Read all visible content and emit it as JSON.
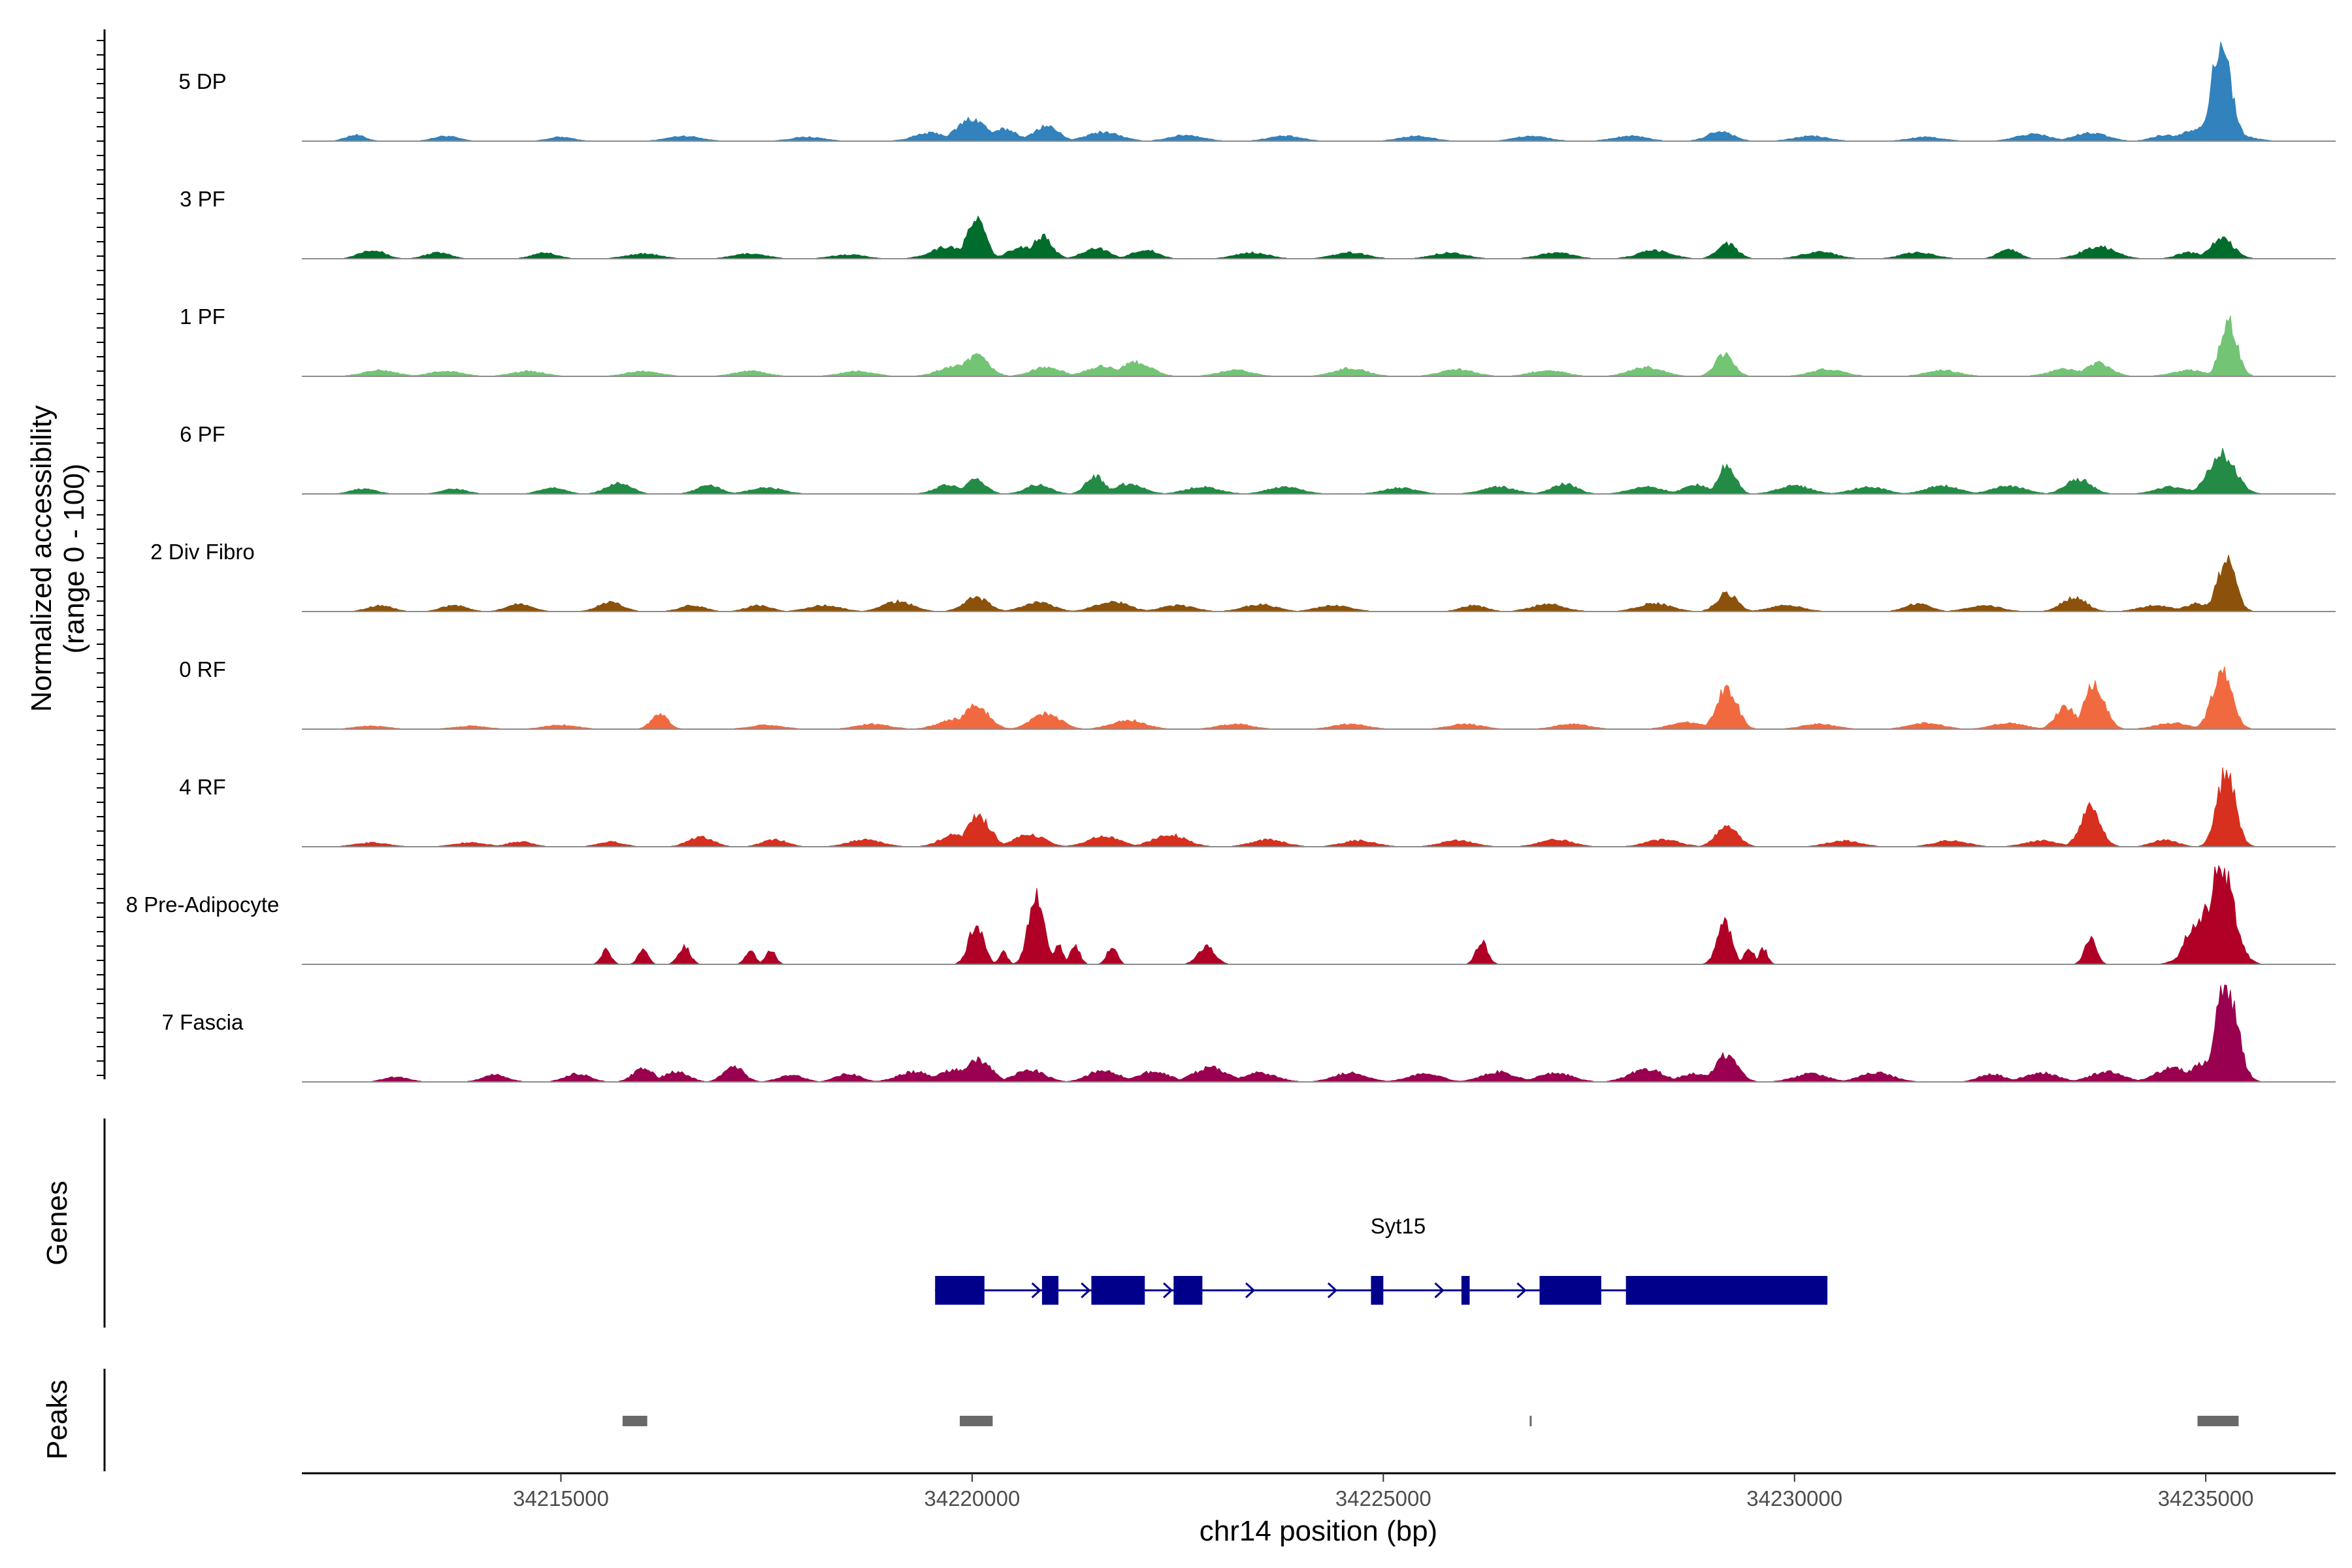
{
  "chart_data": {
    "type": "area",
    "chromosome": "chr14",
    "xlabel": "chr14 position (bp)",
    "xlim": [
      34211850,
      34236580
    ],
    "xticks": [
      34215000,
      34220000,
      34225000,
      34230000,
      34235000
    ],
    "xtick_labels": [
      "34215000",
      "34220000",
      "34225000",
      "34230000",
      "34235000"
    ],
    "coverage_panel": {
      "ylabel_line1": "Normalized accessibility",
      "ylabel_line2": "(range 0 - 100)",
      "ylim": [
        0,
        100
      ]
    },
    "tracks": [
      {
        "name": "5 DP",
        "color": "#3182bd",
        "peaks": [
          [
            34212500,
            6,
            120
          ],
          [
            34213600,
            5,
            150
          ],
          [
            34215000,
            4,
            150
          ],
          [
            34216500,
            5,
            200
          ],
          [
            34218000,
            4,
            200
          ],
          [
            34219500,
            8,
            200
          ],
          [
            34220000,
            22,
            180
          ],
          [
            34220400,
            12,
            150
          ],
          [
            34220900,
            15,
            150
          ],
          [
            34221600,
            9,
            200
          ],
          [
            34222600,
            6,
            200
          ],
          [
            34223800,
            5,
            200
          ],
          [
            34225400,
            5,
            200
          ],
          [
            34226800,
            5,
            200
          ],
          [
            34228000,
            5,
            200
          ],
          [
            34229100,
            10,
            150
          ],
          [
            34230200,
            5,
            200
          ],
          [
            34231600,
            4,
            200
          ],
          [
            34232900,
            7,
            200
          ],
          [
            34233600,
            8,
            200
          ],
          [
            34234500,
            6,
            150
          ],
          [
            34235190,
            95,
            120
          ],
          [
            34235050,
            15,
            300
          ]
        ]
      },
      {
        "name": "3 PF",
        "color": "#006d2c",
        "peaks": [
          [
            34212700,
            9,
            150
          ],
          [
            34213500,
            6,
            150
          ],
          [
            34214800,
            6,
            150
          ],
          [
            34216000,
            5,
            200
          ],
          [
            34217300,
            5,
            200
          ],
          [
            34218500,
            4,
            200
          ],
          [
            34219700,
            12,
            200
          ],
          [
            34220050,
            40,
            110
          ],
          [
            34220600,
            12,
            150
          ],
          [
            34220850,
            22,
            120
          ],
          [
            34221500,
            11,
            150
          ],
          [
            34222100,
            9,
            150
          ],
          [
            34223400,
            6,
            200
          ],
          [
            34224600,
            6,
            200
          ],
          [
            34225800,
            6,
            200
          ],
          [
            34227100,
            6,
            200
          ],
          [
            34228300,
            8,
            200
          ],
          [
            34229180,
            15,
            120
          ],
          [
            34230300,
            7,
            200
          ],
          [
            34231500,
            6,
            200
          ],
          [
            34232600,
            10,
            120
          ],
          [
            34233700,
            12,
            200
          ],
          [
            34234800,
            6,
            150
          ],
          [
            34235200,
            20,
            140
          ]
        ]
      },
      {
        "name": "1 PF",
        "color": "#74c476",
        "peaks": [
          [
            34212800,
            6,
            200
          ],
          [
            34213600,
            5,
            200
          ],
          [
            34214600,
            5,
            200
          ],
          [
            34216000,
            5,
            200
          ],
          [
            34217300,
            5,
            200
          ],
          [
            34218600,
            5,
            200
          ],
          [
            34219800,
            10,
            200
          ],
          [
            34220050,
            20,
            150
          ],
          [
            34220900,
            9,
            180
          ],
          [
            34221600,
            10,
            200
          ],
          [
            34222000,
            14,
            180
          ],
          [
            34223200,
            6,
            200
          ],
          [
            34224600,
            8,
            200
          ],
          [
            34225900,
            7,
            200
          ],
          [
            34227000,
            6,
            200
          ],
          [
            34228200,
            9,
            200
          ],
          [
            34229150,
            22,
            110
          ],
          [
            34230400,
            7,
            200
          ],
          [
            34231800,
            6,
            200
          ],
          [
            34233300,
            7,
            200
          ],
          [
            34233700,
            13,
            150
          ],
          [
            34234800,
            6,
            200
          ],
          [
            34235280,
            55,
            100
          ]
        ]
      },
      {
        "name": "6 PF",
        "color": "#238b45",
        "peaks": [
          [
            34212600,
            5,
            150
          ],
          [
            34213700,
            5,
            150
          ],
          [
            34214900,
            6,
            150
          ],
          [
            34215700,
            11,
            150
          ],
          [
            34216800,
            8,
            150
          ],
          [
            34217500,
            6,
            200
          ],
          [
            34219700,
            9,
            150
          ],
          [
            34220050,
            14,
            120
          ],
          [
            34220800,
            9,
            150
          ],
          [
            34221500,
            18,
            110
          ],
          [
            34221900,
            10,
            180
          ],
          [
            34222800,
            7,
            200
          ],
          [
            34223800,
            7,
            200
          ],
          [
            34225200,
            6,
            200
          ],
          [
            34226400,
            7,
            200
          ],
          [
            34227200,
            10,
            150
          ],
          [
            34228200,
            7,
            200
          ],
          [
            34228800,
            9,
            150
          ],
          [
            34229180,
            30,
            100
          ],
          [
            34230000,
            8,
            200
          ],
          [
            34230900,
            7,
            200
          ],
          [
            34231800,
            8,
            200
          ],
          [
            34232600,
            8,
            200
          ],
          [
            34233450,
            15,
            150
          ],
          [
            34234600,
            7,
            200
          ],
          [
            34235200,
            40,
            160
          ]
        ]
      },
      {
        "name": "2 Div Fibro",
        "color": "#8c510a",
        "peaks": [
          [
            34212800,
            6,
            150
          ],
          [
            34213700,
            6,
            150
          ],
          [
            34214500,
            8,
            150
          ],
          [
            34215600,
            9,
            150
          ],
          [
            34216600,
            6,
            150
          ],
          [
            34217400,
            6,
            150
          ],
          [
            34218200,
            6,
            200
          ],
          [
            34219100,
            10,
            180
          ],
          [
            34220050,
            14,
            150
          ],
          [
            34220800,
            9,
            180
          ],
          [
            34221700,
            10,
            200
          ],
          [
            34222500,
            6,
            200
          ],
          [
            34223500,
            7,
            200
          ],
          [
            34224400,
            6,
            200
          ],
          [
            34226100,
            6,
            150
          ],
          [
            34227000,
            7,
            200
          ],
          [
            34228300,
            8,
            200
          ],
          [
            34229180,
            18,
            120
          ],
          [
            34229900,
            6,
            200
          ],
          [
            34231500,
            8,
            150
          ],
          [
            34232300,
            6,
            200
          ],
          [
            34233400,
            14,
            150
          ],
          [
            34234400,
            6,
            200
          ],
          [
            34234900,
            8,
            150
          ],
          [
            34235250,
            50,
            110
          ]
        ]
      },
      {
        "name": "0 RF",
        "color": "#f16a3f",
        "peaks": [
          [
            34212700,
            3,
            200
          ],
          [
            34213900,
            3,
            200
          ],
          [
            34215000,
            4,
            200
          ],
          [
            34216200,
            15,
            100
          ],
          [
            34217500,
            4,
            200
          ],
          [
            34218800,
            5,
            200
          ],
          [
            34219800,
            10,
            200
          ],
          [
            34220050,
            24,
            150
          ],
          [
            34220900,
            16,
            170
          ],
          [
            34221900,
            9,
            200
          ],
          [
            34223200,
            5,
            200
          ],
          [
            34224600,
            5,
            200
          ],
          [
            34226000,
            5,
            200
          ],
          [
            34227300,
            5,
            200
          ],
          [
            34228700,
            7,
            200
          ],
          [
            34229180,
            42,
            120
          ],
          [
            34230300,
            5,
            200
          ],
          [
            34231600,
            6,
            200
          ],
          [
            34232600,
            6,
            200
          ],
          [
            34233300,
            22,
            120
          ],
          [
            34233650,
            45,
            120
          ],
          [
            34234600,
            6,
            200
          ],
          [
            34235200,
            56,
            120
          ]
        ]
      },
      {
        "name": "4 RF",
        "color": "#d7301f",
        "peaks": [
          [
            34212700,
            4,
            200
          ],
          [
            34213900,
            4,
            200
          ],
          [
            34214500,
            5,
            150
          ],
          [
            34215600,
            5,
            150
          ],
          [
            34216700,
            10,
            150
          ],
          [
            34217600,
            7,
            150
          ],
          [
            34218700,
            7,
            200
          ],
          [
            34219800,
            12,
            180
          ],
          [
            34220080,
            30,
            140
          ],
          [
            34220700,
            12,
            180
          ],
          [
            34221600,
            10,
            200
          ],
          [
            34222400,
            12,
            200
          ],
          [
            34223600,
            7,
            200
          ],
          [
            34224700,
            6,
            200
          ],
          [
            34225900,
            6,
            200
          ],
          [
            34227100,
            7,
            200
          ],
          [
            34228400,
            7,
            200
          ],
          [
            34229180,
            20,
            130
          ],
          [
            34230600,
            6,
            200
          ],
          [
            34231900,
            6,
            200
          ],
          [
            34233000,
            6,
            200
          ],
          [
            34233600,
            40,
            120
          ],
          [
            34234500,
            7,
            150
          ],
          [
            34235250,
            75,
            110
          ]
        ]
      },
      {
        "name": "8 Pre-Adipocyte",
        "color": "#b00026",
        "peaks": [
          [
            34215550,
            14,
            60
          ],
          [
            34216000,
            14,
            60
          ],
          [
            34216500,
            18,
            70
          ],
          [
            34217300,
            14,
            60
          ],
          [
            34217550,
            14,
            60
          ],
          [
            34220050,
            40,
            90
          ],
          [
            34220380,
            12,
            50
          ],
          [
            34220780,
            75,
            90
          ],
          [
            34221050,
            18,
            60
          ],
          [
            34221250,
            18,
            60
          ],
          [
            34221700,
            18,
            60
          ],
          [
            34222850,
            18,
            100
          ],
          [
            34226200,
            22,
            70
          ],
          [
            34229150,
            40,
            90
          ],
          [
            34229450,
            16,
            60
          ],
          [
            34229620,
            16,
            50
          ],
          [
            34233600,
            26,
            70
          ],
          [
            34234850,
            38,
            110
          ],
          [
            34235190,
            100,
            150
          ],
          [
            34235050,
            55,
            200
          ]
        ]
      },
      {
        "name": "7 Fascia",
        "color": "#99004f",
        "peaks": [
          [
            34213000,
            5,
            150
          ],
          [
            34214200,
            7,
            150
          ],
          [
            34215200,
            8,
            150
          ],
          [
            34216000,
            14,
            120
          ],
          [
            34216400,
            10,
            150
          ],
          [
            34217100,
            16,
            120
          ],
          [
            34217800,
            7,
            150
          ],
          [
            34218500,
            8,
            150
          ],
          [
            34219300,
            10,
            200
          ],
          [
            34219800,
            12,
            200
          ],
          [
            34220080,
            22,
            150
          ],
          [
            34220700,
            12,
            180
          ],
          [
            34221600,
            12,
            180
          ],
          [
            34222200,
            10,
            200
          ],
          [
            34222900,
            14,
            200
          ],
          [
            34223500,
            9,
            200
          ],
          [
            34224600,
            9,
            200
          ],
          [
            34225500,
            8,
            200
          ],
          [
            34226400,
            10,
            200
          ],
          [
            34227100,
            9,
            200
          ],
          [
            34228200,
            13,
            200
          ],
          [
            34228800,
            8,
            200
          ],
          [
            34229180,
            28,
            130
          ],
          [
            34230200,
            8,
            200
          ],
          [
            34231000,
            9,
            200
          ],
          [
            34232400,
            8,
            150
          ],
          [
            34233000,
            9,
            200
          ],
          [
            34233800,
            10,
            200
          ],
          [
            34234600,
            14,
            200
          ],
          [
            34235000,
            20,
            180
          ],
          [
            34235250,
            100,
            130
          ]
        ]
      }
    ],
    "genes_panel": {
      "ylabel": "Genes",
      "gene_name": "Syt15",
      "color": "#00008b",
      "strand": "+",
      "span": [
        34219550,
        34230400
      ],
      "exons": [
        [
          34219550,
          34220150
        ],
        [
          34220850,
          34221050
        ],
        [
          34221450,
          34222100
        ],
        [
          34222450,
          34222800
        ],
        [
          34224850,
          34225000
        ],
        [
          34225950,
          34226050
        ],
        [
          34226900,
          34227650
        ],
        [
          34227950,
          34230400
        ]
      ],
      "intron_arrows": [
        34219550,
        34220650,
        34221250,
        34222250,
        34223250,
        34224250,
        34225550,
        34226550
      ]
    },
    "peaks_panel": {
      "ylabel": "Peaks",
      "color": "#696969",
      "regions": [
        [
          34215750,
          34216050
        ],
        [
          34219850,
          34220250
        ],
        [
          34226780,
          34226800
        ],
        [
          34234900,
          34235400
        ]
      ]
    }
  }
}
